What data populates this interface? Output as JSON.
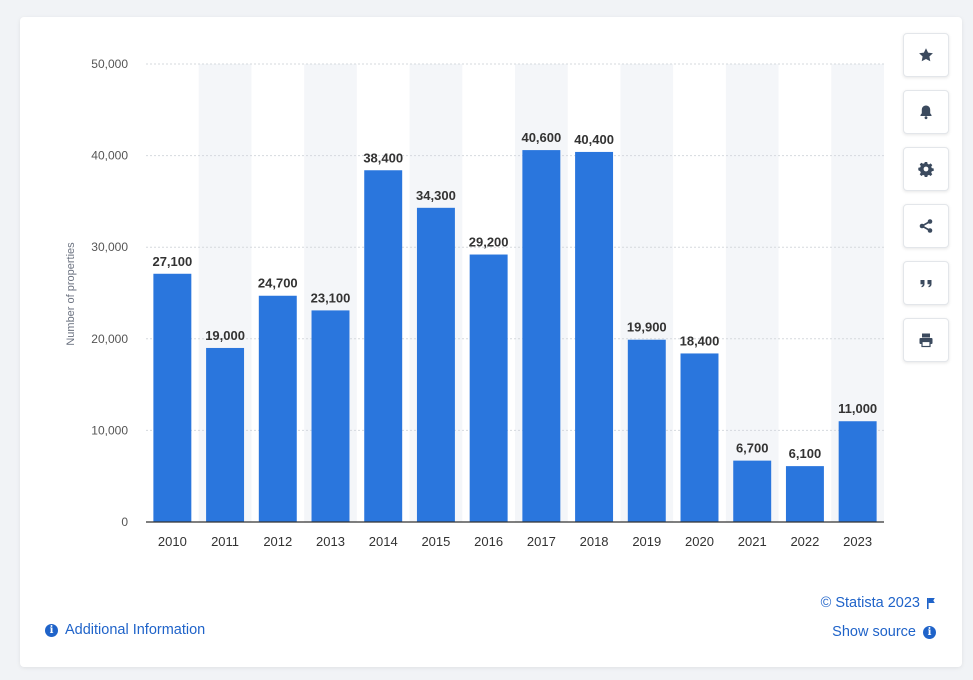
{
  "colors": {
    "bar": "#2a76dd",
    "accent": "#1f63c9",
    "band": "#f4f6f9",
    "grid": "#d5d9de"
  },
  "toolbar": {
    "buttons": [
      {
        "name": "favorite-button",
        "icon": "star-icon"
      },
      {
        "name": "notification-button",
        "icon": "bell-icon"
      },
      {
        "name": "settings-button",
        "icon": "gear-icon"
      },
      {
        "name": "share-button",
        "icon": "share-icon"
      },
      {
        "name": "cite-button",
        "icon": "quote-icon"
      },
      {
        "name": "print-button",
        "icon": "printer-icon"
      }
    ]
  },
  "footer": {
    "additional_info": "Additional Information",
    "copyright": "© Statista 2023",
    "show_source": "Show source"
  },
  "chart_data": {
    "type": "bar",
    "categories": [
      "2010",
      "2011",
      "2012",
      "2013",
      "2014",
      "2015",
      "2016",
      "2017",
      "2018",
      "2019",
      "2020",
      "2021",
      "2022",
      "2023"
    ],
    "values": [
      27100,
      19000,
      24700,
      23100,
      38400,
      34300,
      29200,
      40600,
      40400,
      19900,
      18400,
      6700,
      6100,
      11000
    ],
    "data_labels": [
      "27,100",
      "19,000",
      "24,700",
      "23,100",
      "38,400",
      "34,300",
      "29,200",
      "40,600",
      "40,400",
      "19,900",
      "18,400",
      "6,700",
      "6,100",
      "11,000"
    ],
    "ylabel": "Number of properties",
    "xlabel": "",
    "ylim": [
      0,
      50000
    ],
    "yticks": [
      0,
      10000,
      20000,
      30000,
      40000,
      50000
    ],
    "ytick_labels": [
      "0",
      "10,000",
      "20,000",
      "30,000",
      "40,000",
      "50,000"
    ],
    "grid": true,
    "alternating_bands": true
  }
}
